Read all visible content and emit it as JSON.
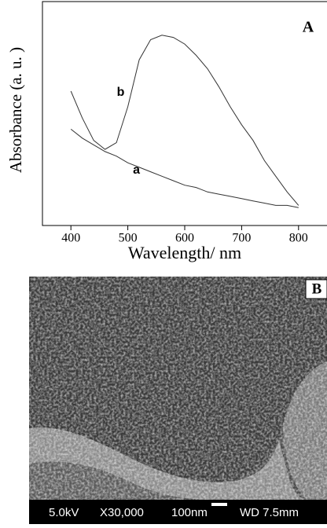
{
  "chart_data": {
    "type": "line",
    "panel_label": "A",
    "x_label": "Wavelength/ nm",
    "y_label": "Absorbance (a. u. )",
    "x": [
      400,
      420,
      440,
      460,
      480,
      500,
      520,
      540,
      560,
      580,
      600,
      620,
      640,
      660,
      680,
      700,
      720,
      740,
      760,
      780,
      800
    ],
    "series": [
      {
        "name": "a",
        "color": "#333333",
        "values": [
          0.43,
          0.39,
          0.36,
          0.33,
          0.31,
          0.28,
          0.26,
          0.24,
          0.22,
          0.2,
          0.18,
          0.17,
          0.15,
          0.14,
          0.13,
          0.12,
          0.11,
          0.1,
          0.09,
          0.09,
          0.08
        ]
      },
      {
        "name": "b",
        "color": "#333333",
        "values": [
          0.6,
          0.48,
          0.38,
          0.34,
          0.37,
          0.53,
          0.74,
          0.83,
          0.85,
          0.84,
          0.81,
          0.76,
          0.7,
          0.62,
          0.53,
          0.45,
          0.38,
          0.29,
          0.22,
          0.15,
          0.09
        ]
      }
    ],
    "xlim": [
      350,
      850
    ],
    "ylim": [
      0,
      1
    ],
    "xticks": [
      400,
      500,
      600,
      700,
      800
    ]
  },
  "panel_b": {
    "label": "B",
    "voltage": "5.0kV",
    "magnification": "X30,000",
    "scale": "100nm",
    "working_distance": "WD 7.5mm"
  }
}
